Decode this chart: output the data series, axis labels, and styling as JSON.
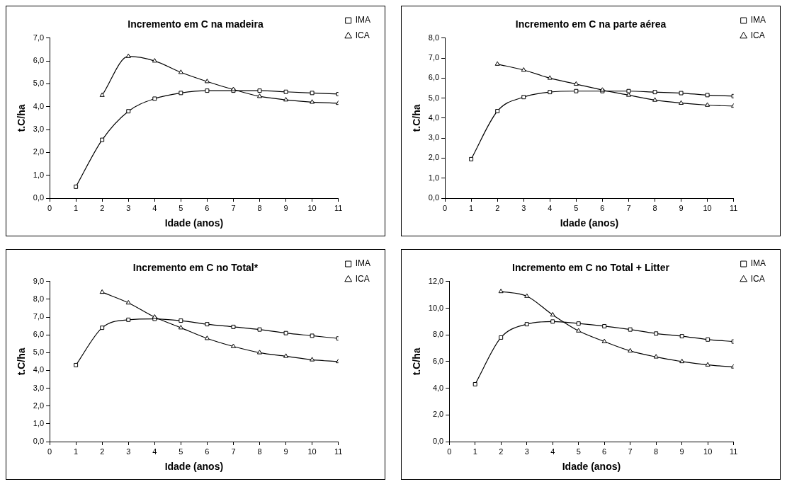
{
  "chart_data": [
    {
      "type": "line",
      "title": "Incremento em C na madeira",
      "xlabel": "Idade (anos)",
      "ylabel": "t.C/ha",
      "xlim": [
        0,
        11
      ],
      "xticks": [
        0,
        1,
        2,
        3,
        4,
        5,
        6,
        7,
        8,
        9,
        10,
        11
      ],
      "ylim": [
        0,
        7
      ],
      "yticks": [
        {
          "value": 0,
          "label": "0,0"
        },
        {
          "value": 1,
          "label": "1,0"
        },
        {
          "value": 2,
          "label": "2,0"
        },
        {
          "value": 3,
          "label": "3,0"
        },
        {
          "value": 4,
          "label": "4,0"
        },
        {
          "value": 5,
          "label": "5,0"
        },
        {
          "value": 6,
          "label": "6,0"
        },
        {
          "value": 7,
          "label": "7,0"
        }
      ],
      "grid": false,
      "legend": "top right",
      "line_style": "solid",
      "series": [
        {
          "name": "IMA",
          "color": "#000000",
          "marker": "square",
          "x": [
            1,
            2,
            3,
            4,
            5,
            6,
            7,
            8,
            9,
            10,
            11
          ],
          "values": [
            0.5,
            2.55,
            3.8,
            4.35,
            4.6,
            4.7,
            4.7,
            4.7,
            4.65,
            4.6,
            4.55
          ]
        },
        {
          "name": "ICA",
          "color": "#000000",
          "marker": "triangle",
          "x": [
            2,
            3,
            4,
            5,
            6,
            7,
            8,
            9,
            10,
            11
          ],
          "values": [
            4.5,
            6.2,
            6.0,
            5.5,
            5.1,
            4.75,
            4.45,
            4.3,
            4.2,
            4.15
          ]
        }
      ]
    },
    {
      "type": "line",
      "title": "Incremento em C na parte aérea",
      "xlabel": "Idade (anos)",
      "ylabel": "t.C/ha",
      "xlim": [
        0,
        11
      ],
      "xticks": [
        0,
        1,
        2,
        3,
        4,
        5,
        6,
        7,
        8,
        9,
        10,
        11
      ],
      "ylim": [
        0,
        8
      ],
      "yticks": [
        {
          "value": 0,
          "label": "0,0"
        },
        {
          "value": 1,
          "label": "1,0"
        },
        {
          "value": 2,
          "label": "2,0"
        },
        {
          "value": 3,
          "label": "3,0"
        },
        {
          "value": 4,
          "label": "4,0"
        },
        {
          "value": 5,
          "label": "5,0"
        },
        {
          "value": 6,
          "label": "6,0"
        },
        {
          "value": 7,
          "label": "7,0"
        },
        {
          "value": 8,
          "label": "8,0"
        }
      ],
      "grid": false,
      "legend": "top right",
      "line_style": "solid",
      "series": [
        {
          "name": "IMA",
          "color": "#000000",
          "marker": "square",
          "x": [
            1,
            2,
            3,
            4,
            5,
            6,
            7,
            8,
            9,
            10,
            11
          ],
          "values": [
            1.95,
            4.35,
            5.05,
            5.3,
            5.35,
            5.35,
            5.35,
            5.3,
            5.25,
            5.15,
            5.1
          ]
        },
        {
          "name": "ICA",
          "color": "#000000",
          "marker": "triangle",
          "x": [
            2,
            3,
            4,
            5,
            6,
            7,
            8,
            9,
            10,
            11
          ],
          "values": [
            6.7,
            6.4,
            6.0,
            5.7,
            5.4,
            5.15,
            4.9,
            4.75,
            4.65,
            4.6
          ]
        }
      ]
    },
    {
      "type": "line",
      "title": "Incremento em C no Total*",
      "xlabel": "Idade (anos)",
      "ylabel": "t.C/ha",
      "xlim": [
        0,
        11
      ],
      "xticks": [
        0,
        1,
        2,
        3,
        4,
        5,
        6,
        7,
        8,
        9,
        10,
        11
      ],
      "ylim": [
        0,
        9
      ],
      "yticks": [
        {
          "value": 0,
          "label": "0,0"
        },
        {
          "value": 1,
          "label": "1,0"
        },
        {
          "value": 2,
          "label": "2,0"
        },
        {
          "value": 3,
          "label": "3,0"
        },
        {
          "value": 4,
          "label": "4,0"
        },
        {
          "value": 5,
          "label": "5,0"
        },
        {
          "value": 6,
          "label": "6,0"
        },
        {
          "value": 7,
          "label": "7,0"
        },
        {
          "value": 8,
          "label": "8,0"
        },
        {
          "value": 9,
          "label": "9,0"
        }
      ],
      "grid": false,
      "legend": "top right",
      "line_style": "solid",
      "series": [
        {
          "name": "IMA",
          "color": "#000000",
          "marker": "square",
          "x": [
            1,
            2,
            3,
            4,
            5,
            6,
            7,
            8,
            9,
            10,
            11
          ],
          "values": [
            4.3,
            6.4,
            6.85,
            6.9,
            6.8,
            6.6,
            6.45,
            6.3,
            6.1,
            5.95,
            5.8
          ]
        },
        {
          "name": "ICA",
          "color": "#000000",
          "marker": "triangle",
          "x": [
            2,
            3,
            4,
            5,
            6,
            7,
            8,
            9,
            10,
            11
          ],
          "values": [
            8.4,
            7.8,
            7.0,
            6.4,
            5.8,
            5.35,
            5.0,
            4.8,
            4.6,
            4.5
          ]
        }
      ]
    },
    {
      "type": "line",
      "title": "Incremento em C no Total + Litter",
      "xlabel": "Idade (anos)",
      "ylabel": "t.C/ha",
      "xlim": [
        0,
        11
      ],
      "xticks": [
        0,
        1,
        2,
        3,
        4,
        5,
        6,
        7,
        8,
        9,
        10,
        11
      ],
      "ylim": [
        0,
        12
      ],
      "yticks": [
        {
          "value": 0,
          "label": "0,0"
        },
        {
          "value": 2,
          "label": "2,0"
        },
        {
          "value": 4,
          "label": "4,0"
        },
        {
          "value": 6,
          "label": "6,0"
        },
        {
          "value": 8,
          "label": "8,0"
        },
        {
          "value": 10,
          "label": "10,0"
        },
        {
          "value": 12,
          "label": "12,0"
        }
      ],
      "grid": false,
      "legend": "top right",
      "line_style": "solid",
      "series": [
        {
          "name": "IMA",
          "color": "#000000",
          "marker": "square",
          "x": [
            1,
            2,
            3,
            4,
            5,
            6,
            7,
            8,
            9,
            10,
            11
          ],
          "values": [
            4.3,
            7.8,
            8.8,
            9.0,
            8.85,
            8.65,
            8.4,
            8.1,
            7.9,
            7.65,
            7.5
          ]
        },
        {
          "name": "ICA",
          "color": "#000000",
          "marker": "triangle",
          "x": [
            2,
            3,
            4,
            5,
            6,
            7,
            8,
            9,
            10,
            11
          ],
          "values": [
            11.25,
            10.9,
            9.5,
            8.3,
            7.5,
            6.8,
            6.35,
            6.0,
            5.75,
            5.6
          ]
        }
      ]
    }
  ]
}
